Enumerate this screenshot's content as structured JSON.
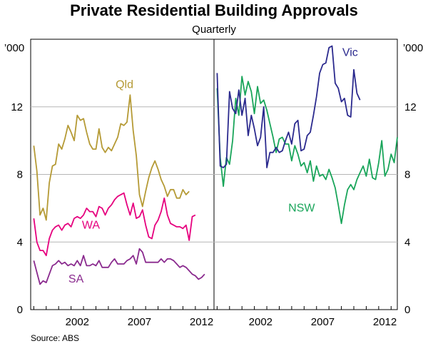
{
  "chart_data": {
    "type": "line",
    "title": "Private Residential Building Approvals",
    "subtitle": "Quarterly",
    "unit": "’000",
    "source": "Source: ABS",
    "yticks": [
      "0",
      "4",
      "8",
      "12"
    ],
    "ylim": [
      0,
      16
    ],
    "xlim": [
      1998.75,
      2013.5
    ],
    "xticks": [
      "2002",
      "2007",
      "2012"
    ],
    "x_start": 1999.0,
    "x_step": 0.25,
    "panels": [
      {
        "name": "left",
        "series": [
          {
            "name": "Qld",
            "color": "#b59a35",
            "label_at": [
              2006.3,
              13.1
            ],
            "values": [
              9.7,
              8.2,
              5.6,
              6.0,
              5.3,
              7.5,
              8.5,
              8.6,
              9.8,
              9.5,
              10.1,
              10.9,
              10.5,
              10.0,
              11.5,
              11.2,
              11.3,
              10.5,
              9.8,
              9.5,
              9.5,
              10.7,
              9.6,
              9.3,
              9.6,
              9.4,
              9.8,
              10.2,
              11.0,
              10.9,
              11.1,
              12.7,
              10.6,
              9.1,
              6.8,
              6.1,
              7.0,
              7.8,
              8.4,
              8.8,
              8.3,
              7.7,
              7.3,
              6.7,
              7.1,
              7.1,
              6.6,
              6.6,
              7.1,
              6.8,
              7.0
            ]
          },
          {
            "name": "WA",
            "color": "#e6007e",
            "label_at": [
              2003.6,
              4.8
            ],
            "values": [
              5.4,
              4.0,
              3.5,
              3.5,
              3.2,
              4.2,
              4.7,
              4.9,
              5.0,
              4.7,
              5.0,
              5.1,
              4.9,
              5.4,
              5.5,
              5.4,
              5.6,
              6.0,
              5.8,
              5.8,
              5.5,
              6.1,
              6.0,
              5.6,
              6.0,
              6.2,
              6.5,
              6.7,
              6.8,
              6.9,
              6.2,
              5.6,
              6.3,
              5.4,
              5.5,
              5.9,
              5.0,
              4.3,
              4.2,
              5.0,
              5.3,
              5.8,
              6.6,
              5.6,
              5.1,
              5.0,
              4.9,
              4.9,
              4.8,
              5.0,
              4.1,
              5.5,
              5.6
            ]
          },
          {
            "name": "SA",
            "color": "#8a2a8e",
            "label_at": [
              2002.4,
              1.6
            ],
            "values": [
              2.9,
              2.2,
              1.5,
              1.7,
              1.6,
              2.1,
              2.6,
              2.7,
              2.9,
              2.7,
              2.8,
              2.6,
              2.7,
              2.6,
              2.9,
              2.6,
              3.2,
              2.6,
              2.6,
              2.7,
              2.6,
              2.9,
              2.5,
              2.5,
              2.5,
              2.8,
              3.0,
              2.7,
              2.7,
              2.7,
              2.9,
              3.0,
              3.2,
              2.7,
              3.6,
              3.4,
              2.8,
              2.8,
              2.8,
              2.8,
              2.8,
              3.0,
              2.8,
              3.0,
              3.0,
              2.9,
              2.7,
              2.5,
              2.6,
              2.5,
              2.3,
              2.1,
              2.0,
              1.8,
              1.9,
              2.1
            ]
          }
        ]
      },
      {
        "name": "right",
        "series": [
          {
            "name": "NSW",
            "color": "#19a55a",
            "label_at": [
              2005.8,
              5.8
            ],
            "values": [
              13.1,
              9.0,
              7.3,
              9.0,
              8.6,
              10.0,
              12.5,
              11.5,
              13.8,
              12.7,
              13.5,
              12.9,
              11.6,
              13.2,
              12.2,
              12.4,
              11.8,
              11.0,
              10.2,
              9.3,
              10.1,
              10.2,
              9.8,
              9.8,
              8.8,
              9.7,
              9.2,
              8.5,
              8.7,
              8.1,
              8.8,
              7.6,
              8.5,
              7.9,
              8.0,
              7.7,
              8.3,
              7.8,
              7.2,
              6.2,
              5.1,
              6.2,
              7.1,
              7.4,
              7.1,
              7.7,
              8.1,
              8.5,
              7.9,
              8.9,
              7.8,
              7.7,
              8.7,
              10.0,
              7.9,
              8.3,
              9.2,
              8.7,
              10.2
            ]
          },
          {
            "name": "Vic",
            "color": "#2b2a8e",
            "label_at": [
              2009.7,
              15.0
            ],
            "values": [
              14.0,
              8.5,
              8.4,
              8.6,
              12.9,
              11.9,
              11.6,
              13.0,
              11.5,
              12.5,
              10.3,
              11.5,
              10.7,
              9.7,
              10.2,
              12.0,
              8.4,
              9.3,
              9.3,
              9.6,
              9.3,
              9.4,
              10.0,
              10.5,
              9.8,
              11.0,
              11.2,
              9.4,
              9.5,
              10.3,
              10.5,
              11.5,
              12.6,
              14.0,
              14.5,
              14.6,
              15.5,
              15.6,
              13.4,
              13.1,
              12.3,
              12.5,
              11.5,
              11.4,
              14.2,
              12.8,
              12.4
            ]
          }
        ]
      }
    ]
  }
}
